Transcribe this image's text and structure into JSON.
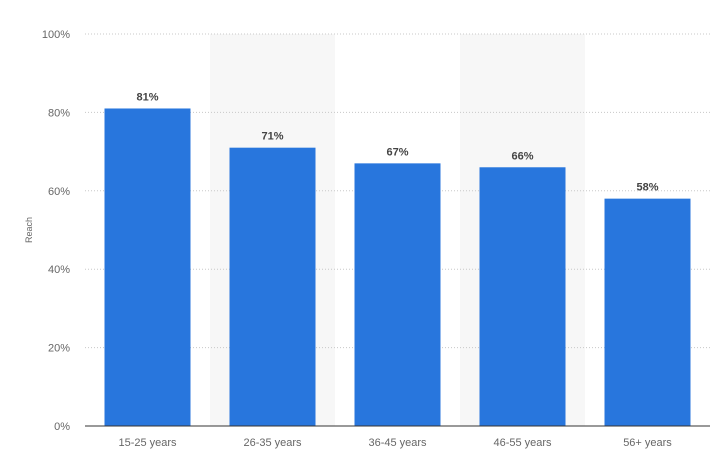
{
  "chart_data": {
    "type": "bar",
    "categories": [
      "15-25 years",
      "26-35 years",
      "36-45 years",
      "46-55 years",
      "56+ years"
    ],
    "values": [
      81,
      71,
      67,
      66,
      58
    ],
    "value_labels": [
      "81%",
      "71%",
      "67%",
      "66%",
      "58%"
    ],
    "title": "",
    "xlabel": "",
    "ylabel": "Reach",
    "ylim": [
      0,
      100
    ],
    "yticks": [
      0,
      20,
      40,
      60,
      80,
      100
    ],
    "ytick_labels": [
      "0%",
      "20%",
      "40%",
      "60%",
      "80%",
      "100%"
    ],
    "grid": true,
    "legend": "none",
    "colors": {
      "bar": "#2876dd",
      "band": "#f7f7f7",
      "grid": "#c8c8c8",
      "axis": "#333333",
      "tick_text": "#666666",
      "value_text": "#444444"
    }
  }
}
